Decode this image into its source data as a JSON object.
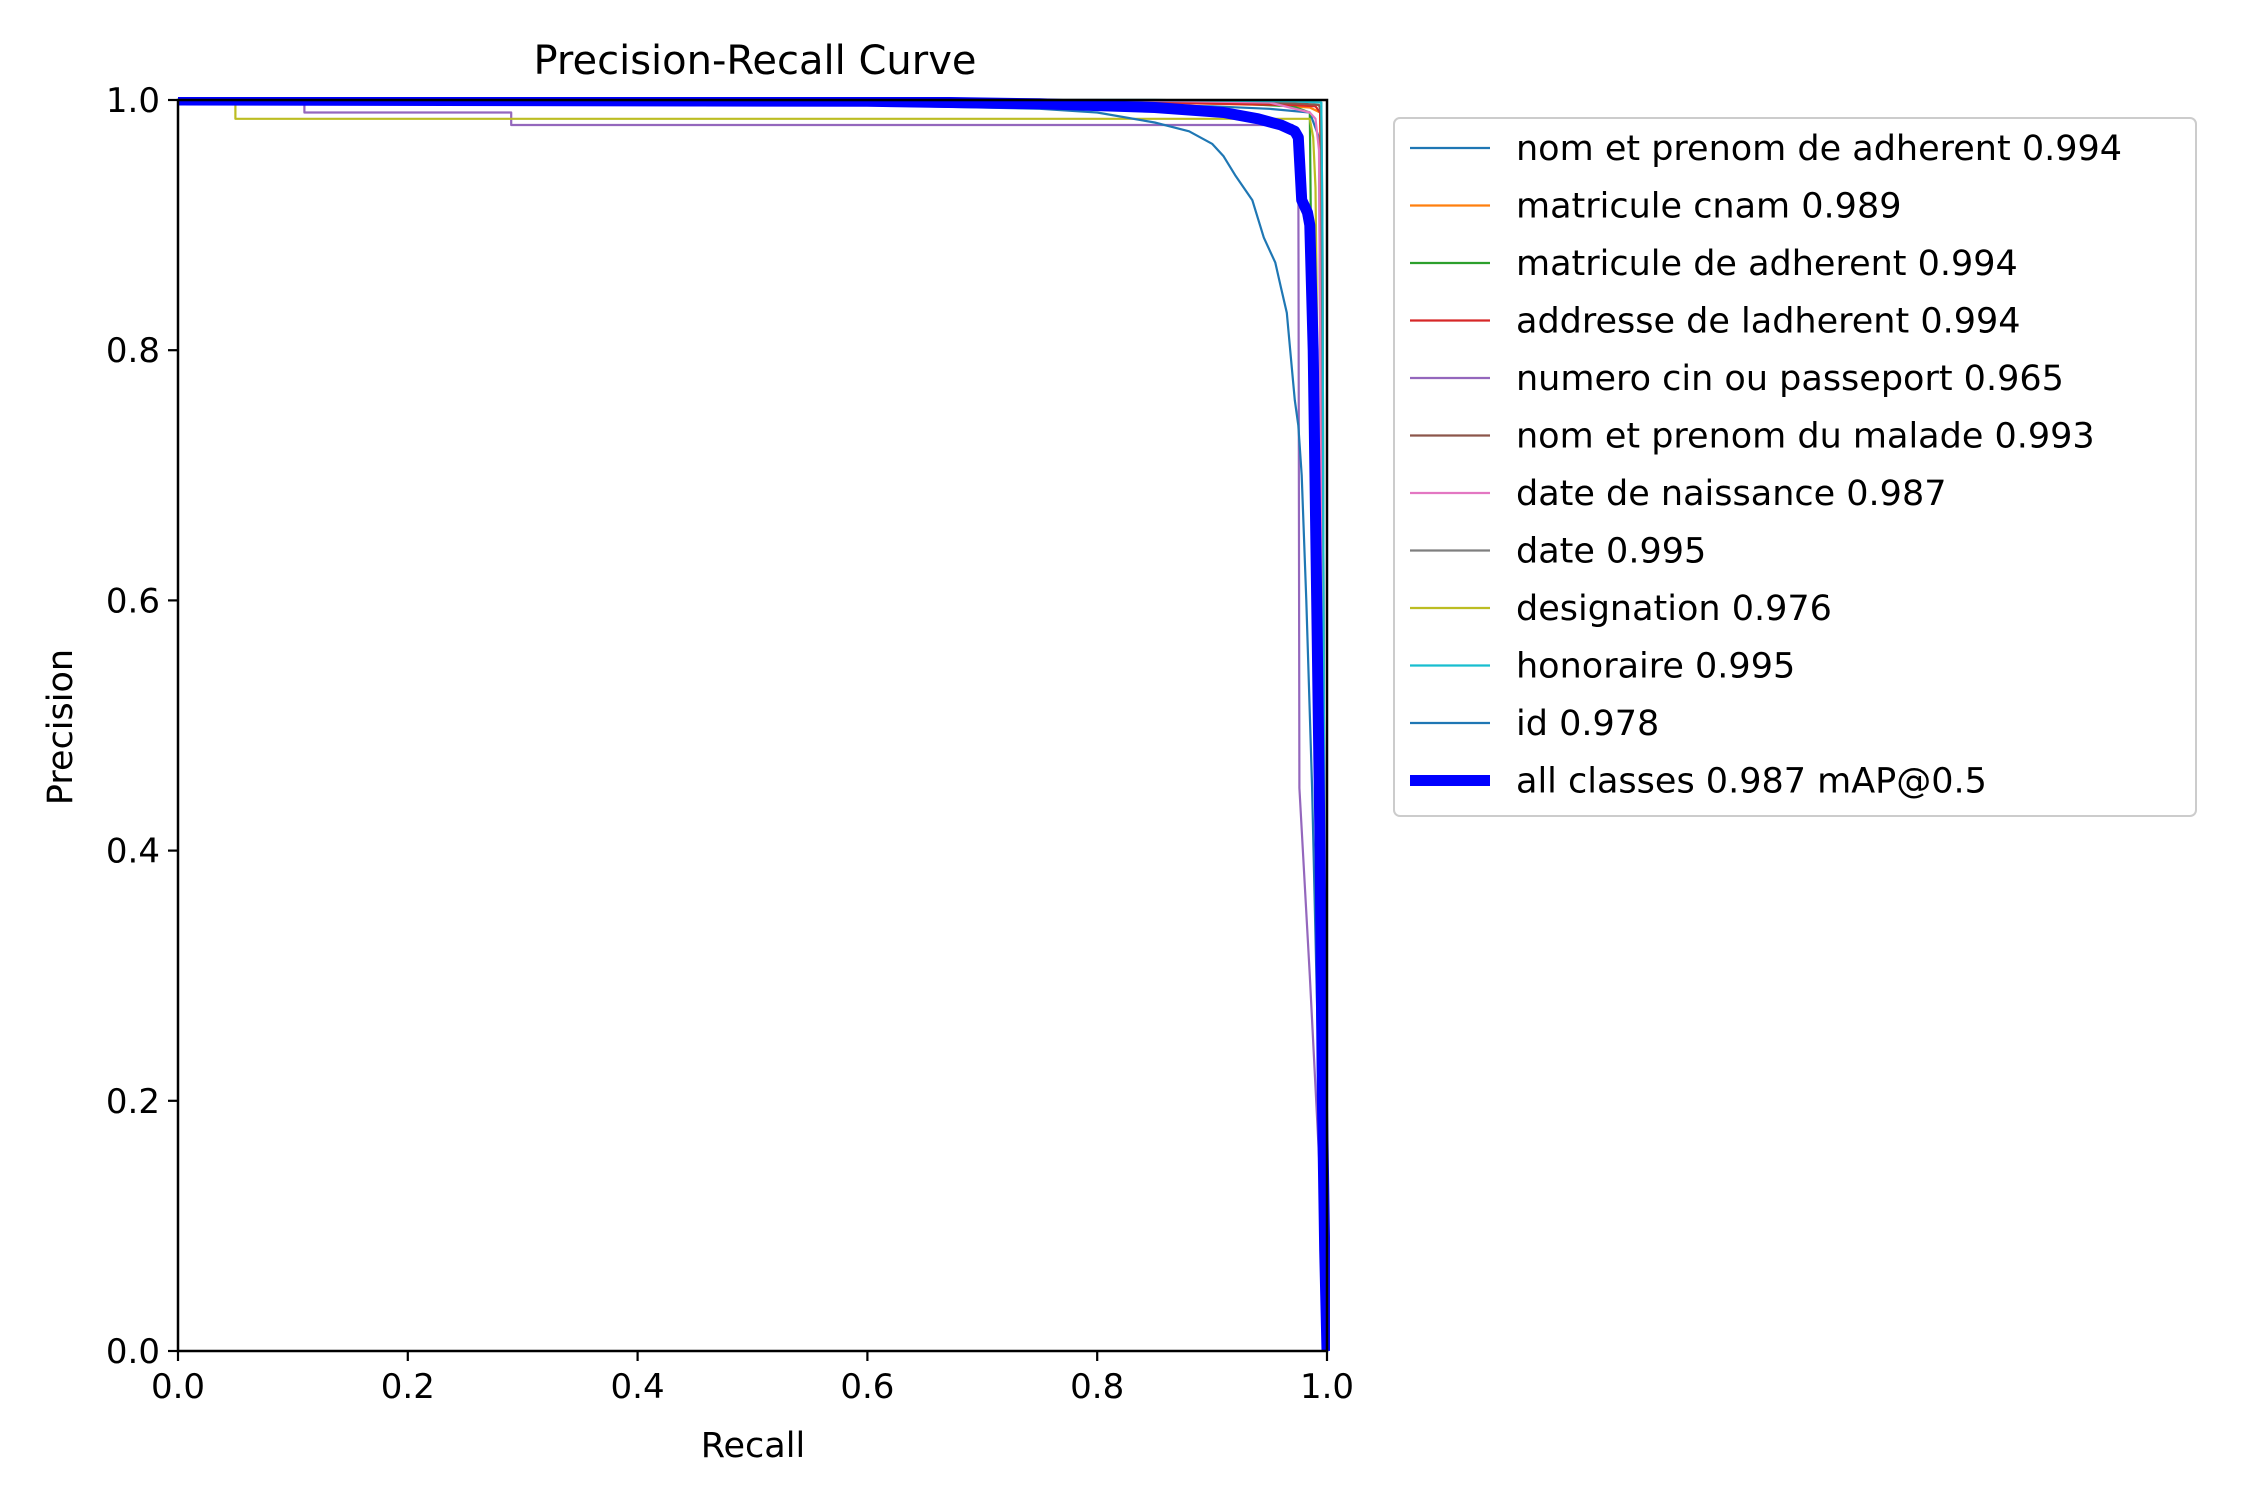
{
  "chart_data": {
    "type": "line",
    "title": "Precision-Recall Curve",
    "xlabel": "Recall",
    "ylabel": "Precision",
    "xlim": [
      0,
      1
    ],
    "ylim": [
      0,
      1
    ],
    "xticks": [
      "0.0",
      "0.2",
      "0.4",
      "0.6",
      "0.8",
      "1.0"
    ],
    "yticks": [
      "0.0",
      "0.2",
      "0.4",
      "0.6",
      "0.8",
      "1.0"
    ],
    "grid": false,
    "legend_position": "outside right",
    "series": [
      {
        "name": "nom et prenom de adherent 0.994",
        "color": "#1f77b4",
        "width": 1,
        "points": [
          [
            0,
            1
          ],
          [
            0.55,
            1
          ],
          [
            0.75,
            0.997
          ],
          [
            0.9,
            0.995
          ],
          [
            0.95,
            0.993
          ],
          [
            0.985,
            0.99
          ],
          [
            0.993,
            0.97
          ],
          [
            0.996,
            0.5
          ],
          [
            0.998,
            0.05
          ],
          [
            1,
            0
          ]
        ]
      },
      {
        "name": "matricule cnam 0.989",
        "color": "#ff7f0e",
        "width": 1,
        "points": [
          [
            0,
            1
          ],
          [
            0.6,
            1
          ],
          [
            0.85,
            0.998
          ],
          [
            0.95,
            0.996
          ],
          [
            0.985,
            0.994
          ],
          [
            0.994,
            0.99
          ],
          [
            0.996,
            0.8
          ],
          [
            0.998,
            0.3
          ],
          [
            1,
            0
          ]
        ]
      },
      {
        "name": "matricule de adherent 0.994",
        "color": "#2ca02c",
        "width": 1,
        "points": [
          [
            0,
            1
          ],
          [
            0.7,
            1
          ],
          [
            0.9,
            0.998
          ],
          [
            0.97,
            0.995
          ],
          [
            0.985,
            0.99
          ],
          [
            0.987,
            0.8
          ],
          [
            0.99,
            0.72
          ],
          [
            0.993,
            0.6
          ],
          [
            0.996,
            0.2
          ],
          [
            1,
            0
          ]
        ]
      },
      {
        "name": "addresse de ladherent 0.994",
        "color": "#d62728",
        "width": 1,
        "points": [
          [
            0,
            1
          ],
          [
            0.6,
            1
          ],
          [
            0.85,
            0.998
          ],
          [
            0.97,
            0.996
          ],
          [
            0.99,
            0.995
          ],
          [
            0.994,
            0.99
          ],
          [
            0.996,
            0.9
          ],
          [
            0.998,
            0.3
          ],
          [
            1,
            0
          ]
        ]
      },
      {
        "name": "numero cin ou passeport 0.965",
        "color": "#9467bd",
        "width": 1,
        "points": [
          [
            0,
            1
          ],
          [
            0.11,
            1
          ],
          [
            0.11,
            0.99
          ],
          [
            0.29,
            0.99
          ],
          [
            0.29,
            0.98
          ],
          [
            0.97,
            0.98
          ],
          [
            0.975,
            0.97
          ],
          [
            0.976,
            0.45
          ],
          [
            0.985,
            0.3
          ],
          [
            0.995,
            0.12
          ],
          [
            1,
            0
          ]
        ]
      },
      {
        "name": "nom et prenom du malade 0.993",
        "color": "#8c564b",
        "width": 1,
        "points": [
          [
            0,
            1
          ],
          [
            0.7,
            1
          ],
          [
            0.9,
            0.999
          ],
          [
            0.98,
            0.997
          ],
          [
            0.993,
            0.996
          ],
          [
            0.995,
            0.99
          ],
          [
            0.996,
            0.5
          ],
          [
            0.998,
            0.1
          ],
          [
            1,
            0
          ]
        ]
      },
      {
        "name": "date de naissance 0.987",
        "color": "#e377c2",
        "width": 1,
        "points": [
          [
            0,
            1
          ],
          [
            0.8,
            1
          ],
          [
            0.95,
            0.998
          ],
          [
            0.985,
            0.99
          ],
          [
            0.99,
            0.985
          ],
          [
            0.993,
            0.96
          ],
          [
            0.996,
            0.5
          ],
          [
            0.998,
            0.1
          ],
          [
            1,
            0
          ]
        ]
      },
      {
        "name": "date 0.995",
        "color": "#7f7f7f",
        "width": 1,
        "points": [
          [
            0,
            1
          ],
          [
            0.85,
            1
          ],
          [
            0.97,
            0.999
          ],
          [
            0.995,
            0.998
          ],
          [
            0.996,
            0.9
          ],
          [
            0.998,
            0.3
          ],
          [
            1,
            0
          ]
        ]
      },
      {
        "name": "designation 0.976",
        "color": "#bcbd22",
        "width": 1,
        "points": [
          [
            0,
            1
          ],
          [
            0.05,
            1
          ],
          [
            0.05,
            0.985
          ],
          [
            0.985,
            0.985
          ],
          [
            0.988,
            0.97
          ],
          [
            0.99,
            0.93
          ],
          [
            0.994,
            0.6
          ],
          [
            0.997,
            0.2
          ],
          [
            1,
            0
          ]
        ]
      },
      {
        "name": "honoraire 0.995",
        "color": "#17becf",
        "width": 1,
        "points": [
          [
            0,
            1
          ],
          [
            0.85,
            1
          ],
          [
            0.97,
            0.999
          ],
          [
            0.995,
            0.998
          ],
          [
            0.996,
            0.9
          ],
          [
            0.998,
            0.3
          ],
          [
            1,
            0
          ]
        ]
      },
      {
        "name": "id 0.978",
        "color": "#1f77b4",
        "width": 1,
        "points": [
          [
            0,
            1
          ],
          [
            0.5,
            0.998
          ],
          [
            0.75,
            0.993
          ],
          [
            0.8,
            0.99
          ],
          [
            0.85,
            0.982
          ],
          [
            0.88,
            0.975
          ],
          [
            0.9,
            0.965
          ],
          [
            0.91,
            0.955
          ],
          [
            0.92,
            0.94
          ],
          [
            0.935,
            0.92
          ],
          [
            0.945,
            0.89
          ],
          [
            0.955,
            0.87
          ],
          [
            0.96,
            0.85
          ],
          [
            0.965,
            0.83
          ],
          [
            0.968,
            0.8
          ],
          [
            0.972,
            0.76
          ],
          [
            0.975,
            0.74
          ],
          [
            0.978,
            0.7
          ],
          [
            0.982,
            0.6
          ],
          [
            0.987,
            0.45
          ],
          [
            0.992,
            0.25
          ],
          [
            0.996,
            0.1
          ],
          [
            1,
            0
          ]
        ]
      },
      {
        "name": "all classes 0.987 mAP@0.5",
        "color": "#0000ff",
        "width": 5,
        "points": [
          [
            0,
            1
          ],
          [
            0.6,
            0.999
          ],
          [
            0.75,
            0.997
          ],
          [
            0.85,
            0.994
          ],
          [
            0.91,
            0.99
          ],
          [
            0.94,
            0.985
          ],
          [
            0.96,
            0.98
          ],
          [
            0.972,
            0.975
          ],
          [
            0.975,
            0.97
          ],
          [
            0.978,
            0.92
          ],
          [
            0.983,
            0.91
          ],
          [
            0.985,
            0.9
          ],
          [
            0.988,
            0.8
          ],
          [
            0.991,
            0.6
          ],
          [
            0.994,
            0.4
          ],
          [
            0.996,
            0.2
          ],
          [
            0.998,
            0.08
          ],
          [
            1,
            0
          ]
        ]
      }
    ]
  }
}
